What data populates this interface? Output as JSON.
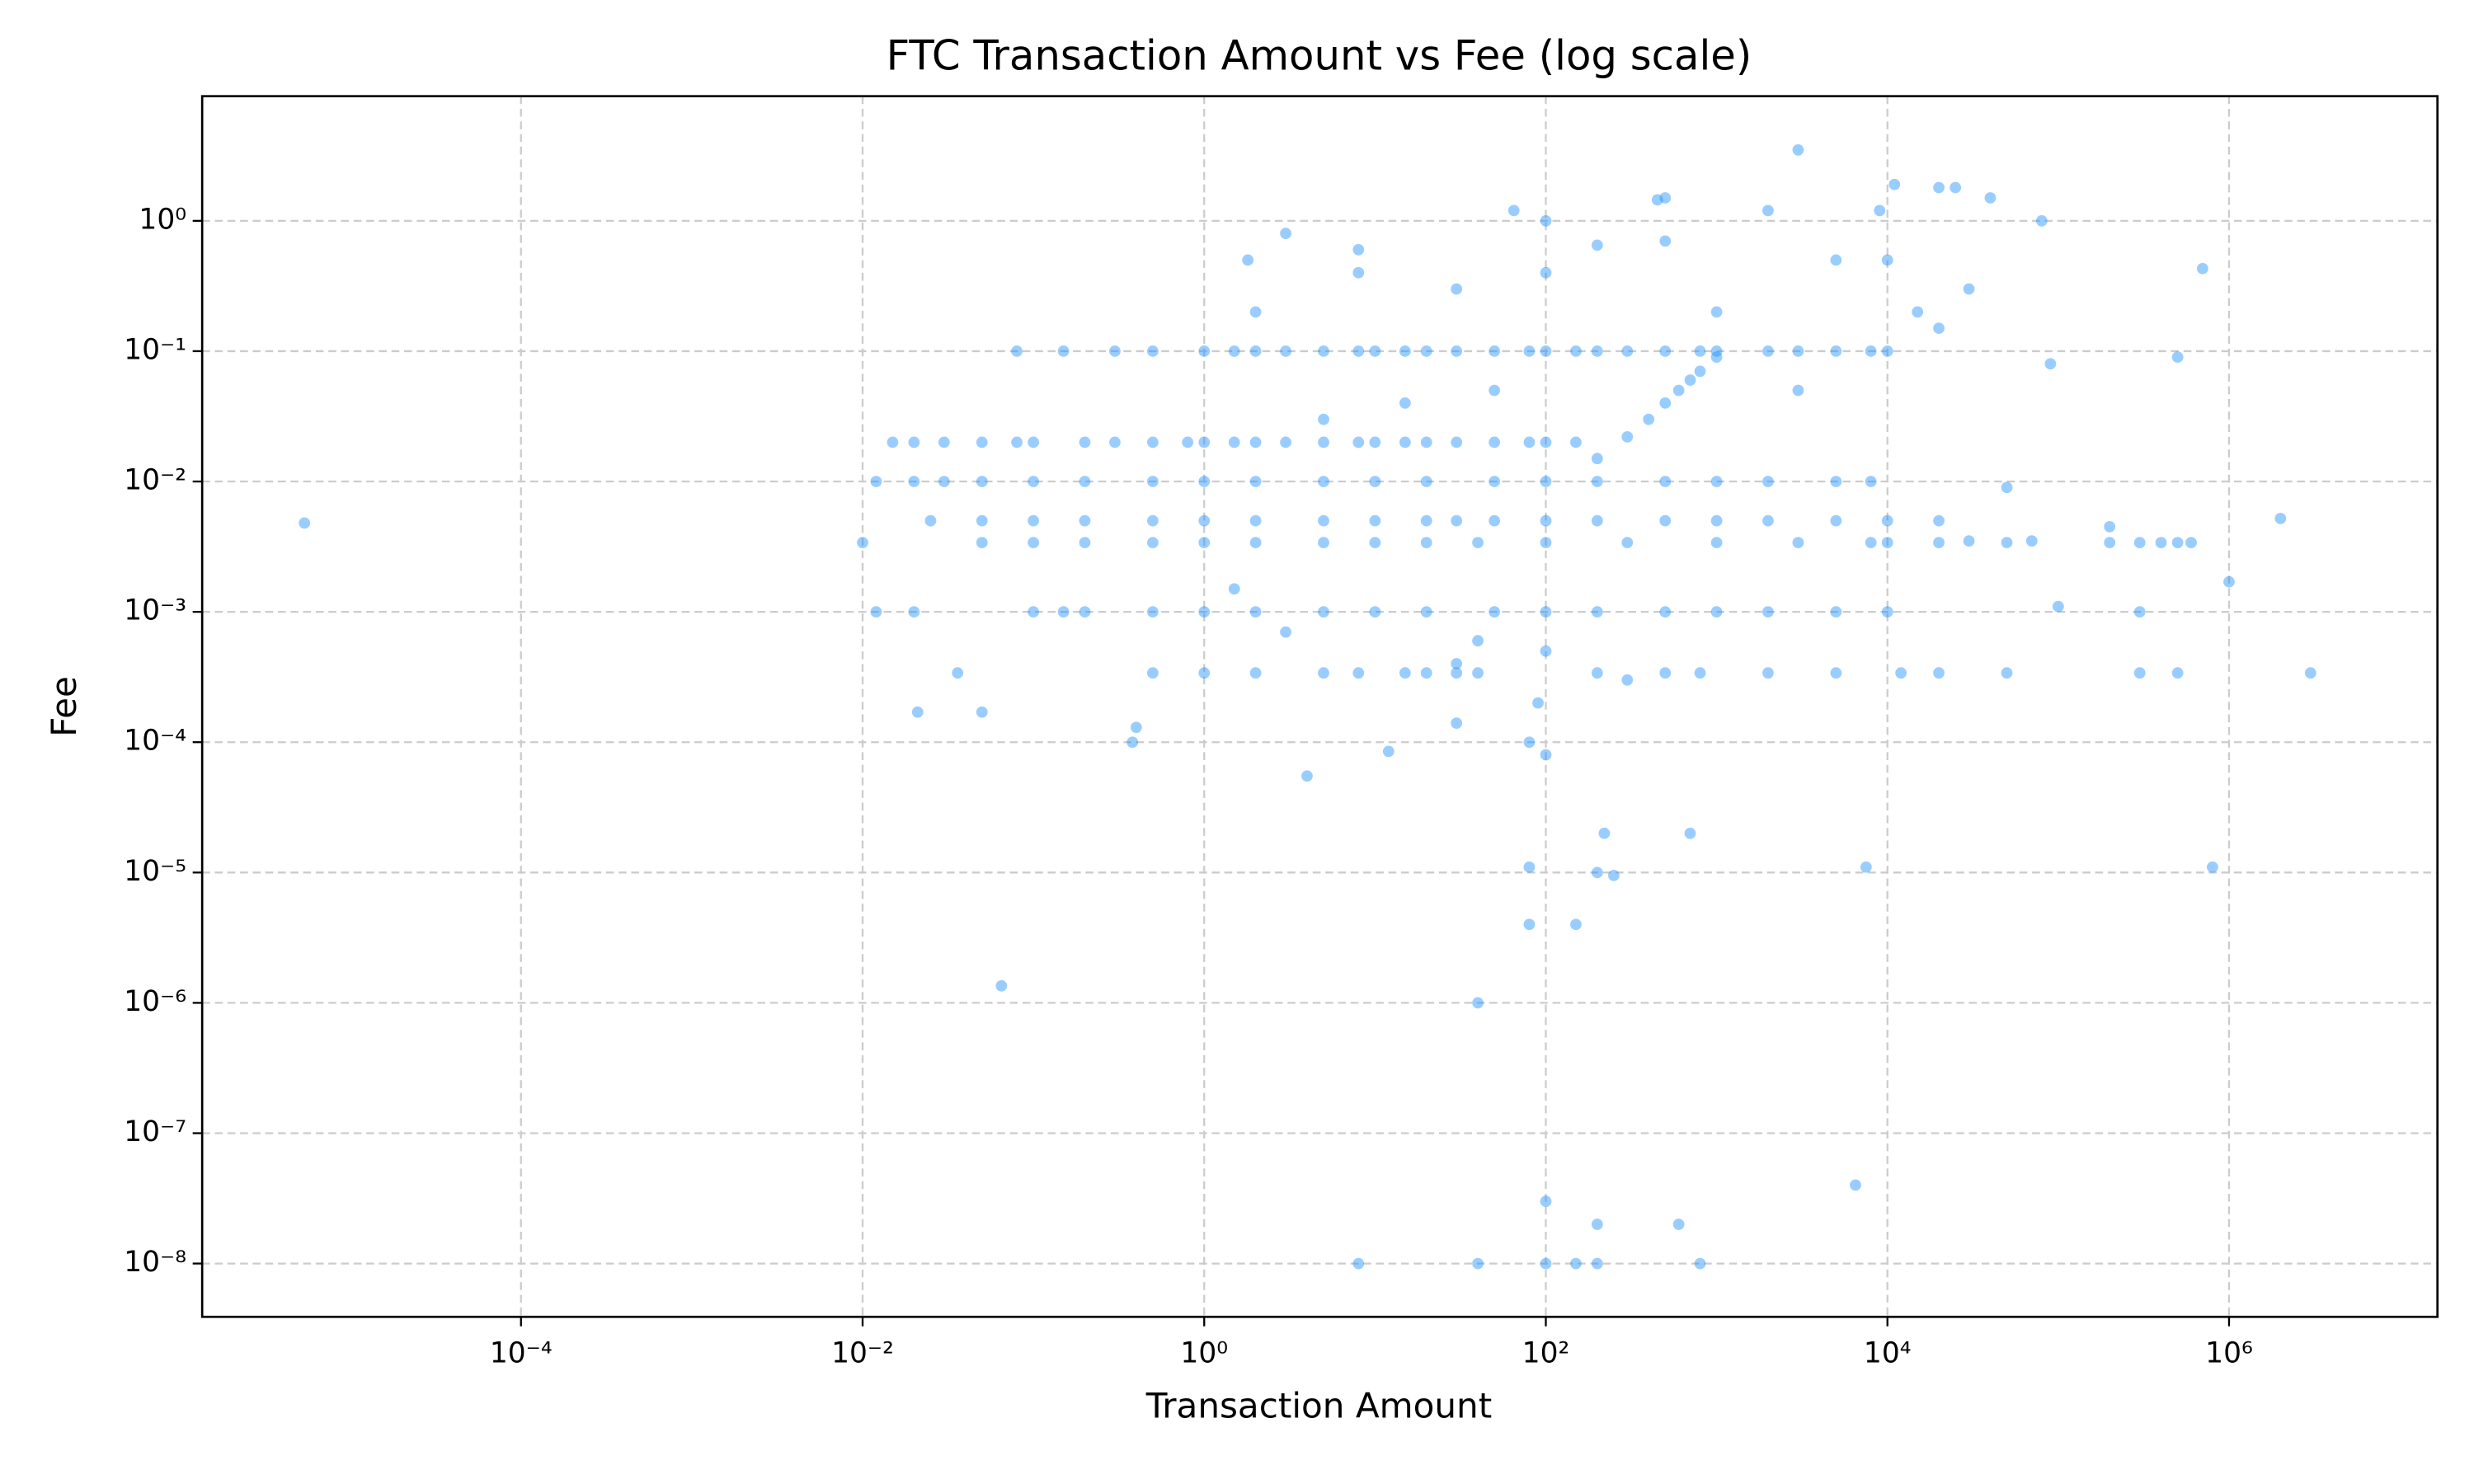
{
  "chart_data": {
    "type": "scatter",
    "title": "FTC Transaction Amount vs Fee (log scale)",
    "x_label": "Transaction Amount",
    "y_label": "Fee",
    "x_scale": "log",
    "y_scale": "log",
    "grid": true,
    "color": "#1e90ff",
    "xlim": [
      1.36e-06,
      16600000.0
    ],
    "ylim": [
      3.9e-09,
      9.04
    ],
    "xticks": [
      {
        "value": 0.0001,
        "label": "10⁻⁴"
      },
      {
        "value": 0.01,
        "label": "10⁻²"
      },
      {
        "value": 1,
        "label": "10⁰"
      },
      {
        "value": 100,
        "label": "10²"
      },
      {
        "value": 10000,
        "label": "10⁴"
      },
      {
        "value": 1000000,
        "label": "10⁶"
      }
    ],
    "yticks": [
      {
        "value": 1e-08,
        "label": "10⁻⁸"
      },
      {
        "value": 1e-07,
        "label": "10⁻⁷"
      },
      {
        "value": 1e-06,
        "label": "10⁻⁶"
      },
      {
        "value": 1e-05,
        "label": "10⁻⁵"
      },
      {
        "value": 0.0001,
        "label": "10⁻⁴"
      },
      {
        "value": 0.001,
        "label": "10⁻³"
      },
      {
        "value": 0.01,
        "label": "10⁻²"
      },
      {
        "value": 0.1,
        "label": "10⁻¹"
      },
      {
        "value": 1,
        "label": "10⁰"
      }
    ],
    "x": [
      0.08,
      0.15,
      0.3,
      0.5,
      1,
      1.5,
      2,
      3,
      5,
      8,
      10,
      15,
      20,
      30,
      50,
      80,
      100,
      150,
      200,
      300,
      500,
      800,
      1000,
      2000,
      3000,
      5000,
      8000,
      10000,
      0.015,
      0.02,
      0.03,
      0.05,
      0.08,
      0.1,
      0.2,
      0.3,
      0.5,
      0.8,
      1,
      1.5,
      2,
      3,
      5,
      8,
      10,
      15,
      20,
      30,
      50,
      80,
      100,
      150,
      0.012,
      0.02,
      0.03,
      0.05,
      0.1,
      0.2,
      0.5,
      1,
      2,
      5,
      10,
      20,
      50,
      100,
      200,
      500,
      1000,
      2000,
      5000,
      8000,
      0.025,
      0.05,
      0.1,
      0.2,
      0.5,
      1,
      2,
      5,
      10,
      20,
      30,
      50,
      100,
      200,
      500,
      1000,
      2000,
      5000,
      10000,
      20000,
      0.01,
      0.05,
      0.1,
      0.2,
      0.5,
      1,
      2,
      5,
      10,
      20,
      40,
      100,
      300,
      1000,
      3000,
      8000,
      10000,
      20000,
      50000,
      200000,
      300000,
      400000,
      500000,
      600000,
      0.012,
      0.1,
      0.2,
      0.5,
      1,
      2,
      5,
      10,
      20,
      50,
      100,
      200,
      500,
      1000,
      2000,
      5000,
      10000,
      300000,
      0.02,
      0.15,
      0.5,
      1,
      2,
      5,
      8,
      15,
      20,
      30,
      40,
      200,
      500,
      800,
      2000,
      5000,
      12000,
      20000,
      50000,
      300000,
      500000,
      3000000,
      200,
      300,
      400,
      500,
      600,
      700,
      800,
      1000,
      5.4e-06,
      0.065,
      40,
      8,
      40,
      100,
      150,
      200,
      800,
      100,
      200,
      600,
      6500,
      80,
      80,
      150,
      220,
      200,
      250,
      700,
      7500,
      800000,
      100,
      80,
      90,
      4,
      12,
      30,
      3000,
      500,
      450,
      11000,
      20000,
      25000,
      40000,
      80000,
      65,
      100,
      2000,
      3,
      700000,
      2000000,
      1000000,
      0.021,
      0.05,
      0.036,
      0.38,
      0.4,
      1.8,
      8,
      8,
      30,
      100,
      200,
      500,
      5000,
      10000,
      15000,
      30000,
      500000,
      90000,
      20000,
      3000,
      1000,
      50,
      5,
      2,
      15,
      40,
      30,
      100,
      300,
      3,
      70000,
      100000,
      30000,
      200000,
      50000,
      9000,
      1.5
    ],
    "values": [
      0.1,
      0.1,
      0.1,
      0.1,
      0.1,
      0.1,
      0.1,
      0.1,
      0.1,
      0.1,
      0.1,
      0.1,
      0.1,
      0.1,
      0.1,
      0.1,
      0.1,
      0.1,
      0.1,
      0.1,
      0.1,
      0.1,
      0.1,
      0.1,
      0.1,
      0.1,
      0.1,
      0.1,
      0.02,
      0.02,
      0.02,
      0.02,
      0.02,
      0.02,
      0.02,
      0.02,
      0.02,
      0.02,
      0.02,
      0.02,
      0.02,
      0.02,
      0.02,
      0.02,
      0.02,
      0.02,
      0.02,
      0.02,
      0.02,
      0.02,
      0.02,
      0.02,
      0.01,
      0.01,
      0.01,
      0.01,
      0.01,
      0.01,
      0.01,
      0.01,
      0.01,
      0.01,
      0.01,
      0.01,
      0.01,
      0.01,
      0.01,
      0.01,
      0.01,
      0.01,
      0.01,
      0.01,
      0.005,
      0.005,
      0.005,
      0.005,
      0.005,
      0.005,
      0.005,
      0.005,
      0.005,
      0.005,
      0.005,
      0.005,
      0.005,
      0.005,
      0.005,
      0.005,
      0.005,
      0.005,
      0.005,
      0.005,
      0.0034,
      0.0034,
      0.0034,
      0.0034,
      0.0034,
      0.0034,
      0.0034,
      0.0034,
      0.0034,
      0.0034,
      0.0034,
      0.0034,
      0.0034,
      0.0034,
      0.0034,
      0.0034,
      0.0034,
      0.0034,
      0.0034,
      0.0034,
      0.0034,
      0.0034,
      0.0034,
      0.0034,
      0.001,
      0.001,
      0.001,
      0.001,
      0.001,
      0.001,
      0.001,
      0.001,
      0.001,
      0.001,
      0.001,
      0.001,
      0.001,
      0.001,
      0.001,
      0.001,
      0.001,
      0.001,
      0.001,
      0.001,
      0.00034,
      0.00034,
      0.00034,
      0.00034,
      0.00034,
      0.00034,
      0.00034,
      0.00034,
      0.00034,
      0.00034,
      0.00034,
      0.00034,
      0.00034,
      0.00034,
      0.00034,
      0.00034,
      0.00034,
      0.00034,
      0.00034,
      0.00034,
      0.015,
      0.022,
      0.03,
      0.04,
      0.05,
      0.06,
      0.07,
      0.09,
      0.0048,
      1.35e-06,
      1e-06,
      1e-08,
      1e-08,
      1e-08,
      1e-08,
      1e-08,
      1e-08,
      3e-08,
      2e-08,
      2e-08,
      4e-08,
      1.1e-05,
      4e-06,
      4e-06,
      2e-05,
      1e-05,
      9.5e-06,
      2e-05,
      1.1e-05,
      1.1e-05,
      8e-05,
      0.0001,
      0.0002,
      5.5e-05,
      8.5e-05,
      0.00014,
      3.5,
      1.5,
      1.45,
      1.9,
      1.8,
      1.8,
      1.5,
      1,
      1.2,
      1,
      1.2,
      0.8,
      0.43,
      0.0052,
      0.0017,
      0.00017,
      0.00017,
      0.00034,
      0.0001,
      0.00013,
      0.5,
      0.6,
      0.4,
      0.3,
      0.4,
      0.65,
      0.7,
      0.5,
      0.5,
      0.2,
      0.3,
      0.09,
      0.08,
      0.15,
      0.05,
      0.2,
      0.05,
      0.03,
      0.2,
      0.04,
      0.0006,
      0.0004,
      0.0005,
      0.0003,
      0.0007,
      0.0035,
      0.0011,
      0.0035,
      0.0045,
      0.009,
      1.2,
      0.0015
    ]
  }
}
